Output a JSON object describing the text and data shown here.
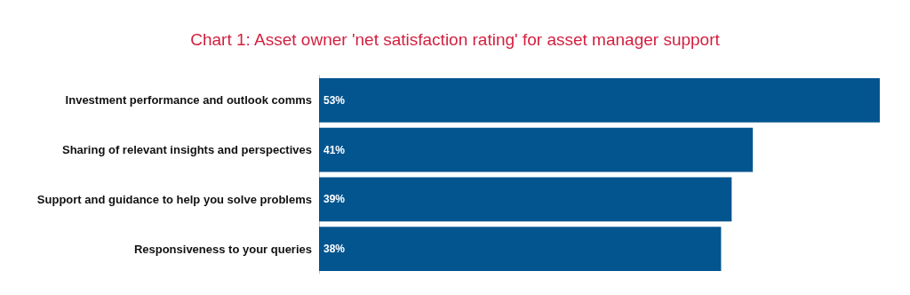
{
  "chart_data": {
    "type": "bar",
    "orientation": "horizontal",
    "title": "Chart 1: Asset owner 'net satisfaction rating' for asset manager support",
    "categories": [
      "Investment performance and outlook comms",
      "Sharing of relevant insights and perspectives",
      "Support and guidance to help you solve problems",
      "Responsiveness to your queries"
    ],
    "values": [
      53,
      41,
      39,
      38
    ],
    "value_labels": [
      "53%",
      "41%",
      "39%",
      "38%"
    ],
    "color": "#03558f"
  }
}
